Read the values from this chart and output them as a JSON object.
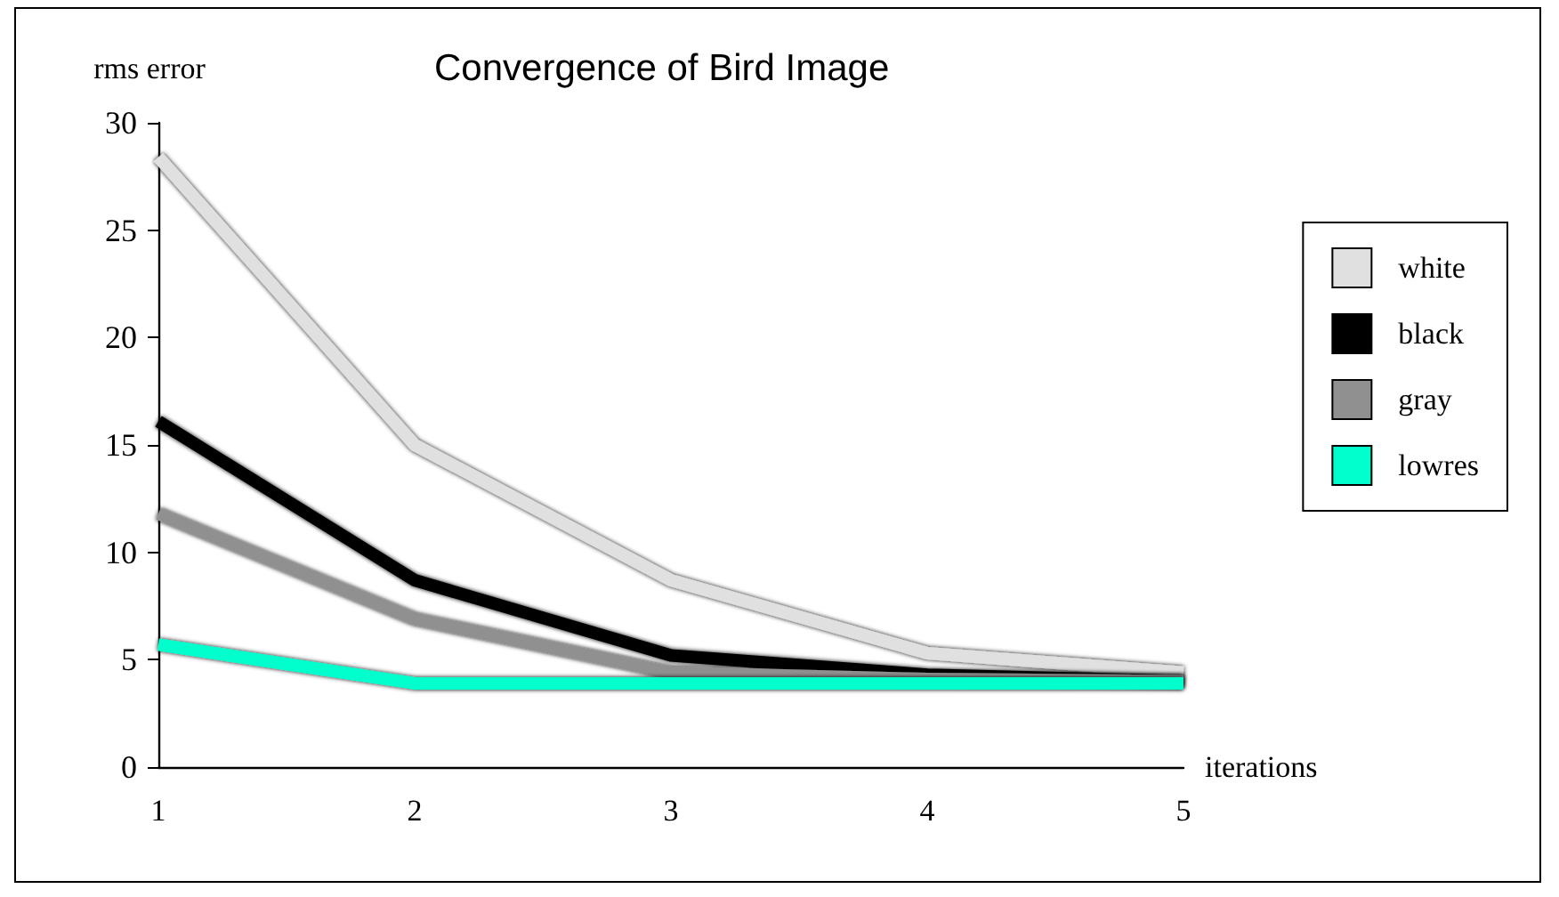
{
  "chart_data": {
    "type": "line",
    "title": "Convergence of Bird Image",
    "xlabel": "iterations",
    "ylabel": "rms error",
    "categories": [
      "1",
      "2",
      "3",
      "4",
      "5"
    ],
    "series": [
      {
        "name": "white",
        "color": "#e0e0e0",
        "values": [
          28.4,
          15.0,
          8.7,
          5.3,
          4.4
        ]
      },
      {
        "name": "black",
        "color": "#000000",
        "values": [
          16.1,
          8.7,
          5.2,
          4.3,
          4.0
        ]
      },
      {
        "name": "gray",
        "color": "#909090",
        "values": [
          11.8,
          6.9,
          4.4,
          4.1,
          4.0
        ]
      },
      {
        "name": "lowres",
        "color": "#00ffcc",
        "values": [
          5.7,
          3.9,
          3.9,
          3.9,
          3.9
        ]
      }
    ],
    "ylim": [
      0,
      30
    ],
    "yticks": [
      0,
      5,
      10,
      15,
      20,
      25,
      30
    ],
    "grid": false,
    "legend": "right",
    "marker": "none",
    "line_style": "solid"
  }
}
